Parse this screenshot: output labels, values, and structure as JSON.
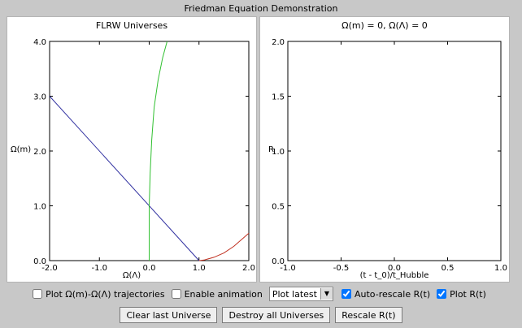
{
  "window": {
    "title": "Friedman Equation Demonstration"
  },
  "left_chart_data": {
    "type": "line",
    "title": "FLRW Universes",
    "xlabel": "Ω(Λ)",
    "ylabel": "Ω(m)",
    "xlim": [
      -2.0,
      2.0
    ],
    "ylim": [
      0.0,
      4.0
    ],
    "xticks": [
      "-2.0",
      "-1.0",
      "0.0",
      "1.0",
      "2.0"
    ],
    "yticks": [
      "0.0",
      "1.0",
      "2.0",
      "3.0",
      "4.0"
    ],
    "series": [
      {
        "color": "#3030a0",
        "x": [
          -2.0,
          1.0
        ],
        "y": [
          3.0,
          0.0
        ]
      },
      {
        "color": "#30c030",
        "x": [
          0.0,
          0.0,
          0.02,
          0.05,
          0.1,
          0.18,
          0.27,
          0.36
        ],
        "y": [
          0.0,
          1.0,
          1.6,
          2.2,
          2.8,
          3.3,
          3.7,
          4.0
        ]
      },
      {
        "color": "#c03020",
        "x": [
          1.0,
          1.1,
          1.3,
          1.5,
          1.7,
          2.0
        ],
        "y": [
          0.0,
          0.01,
          0.06,
          0.14,
          0.26,
          0.5
        ]
      }
    ]
  },
  "right_chart_data": {
    "type": "line",
    "title": "Ω(m) = 0, Ω(Λ) = 0",
    "xlabel": "(t - t_0)/t_Hubble",
    "ylabel": "R",
    "xlim": [
      -1.0,
      1.0
    ],
    "ylim": [
      0.0,
      2.0
    ],
    "xticks": [
      "-1.0",
      "-0.5",
      "0.0",
      "0.5",
      "1.0"
    ],
    "yticks": [
      "0.0",
      "0.5",
      "1.0",
      "1.5",
      "2.0"
    ],
    "series": []
  },
  "controls": {
    "plot_trajectories_label": "Plot Ω(m)-Ω(Λ) trajectories",
    "plot_trajectories_checked": false,
    "enable_animation_label": "Enable animation",
    "enable_animation_checked": false,
    "plot_mode_value": "Plot latest",
    "auto_rescale_label": "Auto-rescale R(t)",
    "auto_rescale_checked": true,
    "plot_r_label": "Plot R(t)",
    "plot_r_checked": true
  },
  "buttons": {
    "clear_last": "Clear last Universe",
    "destroy_all": "Destroy all Universes",
    "rescale": "Rescale R(t)"
  }
}
